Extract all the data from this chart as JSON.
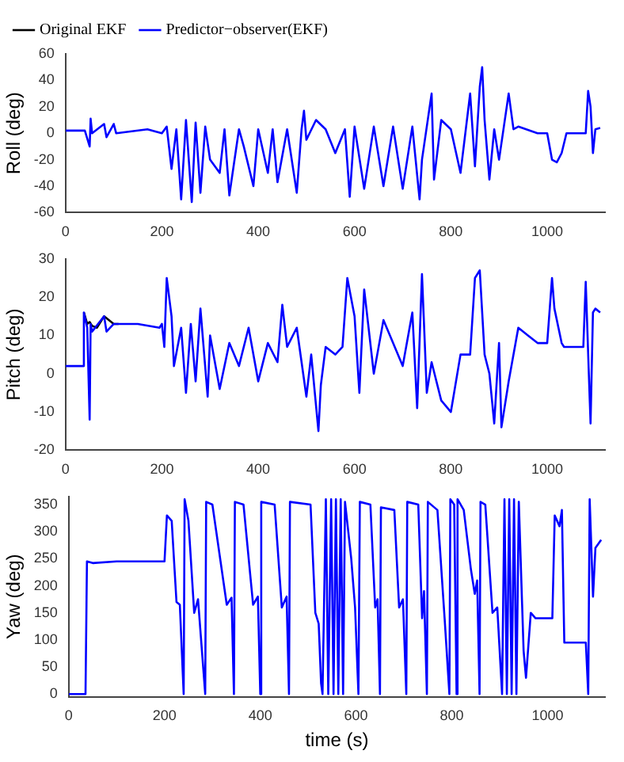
{
  "chart_data": [
    {
      "type": "line",
      "ylabel": "Roll (deg)",
      "legend": "top left",
      "xlim": [
        0,
        1120
      ],
      "xticks": [
        0,
        200,
        400,
        600,
        800,
        1000
      ],
      "ylim": [
        -60,
        60
      ],
      "yticks": [
        -60,
        -40,
        -20,
        0,
        20,
        40,
        60
      ],
      "x": [
        0,
        30,
        40,
        50,
        52,
        55,
        80,
        85,
        100,
        105,
        170,
        200,
        210,
        220,
        230,
        240,
        250,
        262,
        270,
        280,
        290,
        300,
        320,
        330,
        340,
        360,
        370,
        390,
        400,
        420,
        430,
        440,
        460,
        480,
        490,
        495,
        500,
        520,
        540,
        560,
        580,
        590,
        600,
        620,
        640,
        660,
        680,
        700,
        720,
        735,
        740,
        760,
        765,
        780,
        800,
        820,
        840,
        850,
        860,
        865,
        870,
        880,
        890,
        900,
        920,
        930,
        940,
        980,
        1000,
        1010,
        1020,
        1030,
        1040,
        1080,
        1085,
        1090,
        1095,
        1100,
        1110
      ],
      "series": [
        {
          "name": "Original EKF",
          "color": "#000000",
          "values": [
            null,
            null,
            null,
            null,
            null,
            null,
            null,
            null,
            null,
            null,
            null,
            null,
            null,
            null,
            null,
            null,
            null,
            null,
            null,
            null,
            null,
            null,
            null,
            null,
            null,
            null,
            null,
            null,
            null,
            null,
            null,
            null,
            null,
            null,
            null,
            null,
            null,
            null,
            null,
            null,
            null,
            null,
            null,
            null,
            null,
            null,
            null,
            null,
            null,
            null,
            null,
            null,
            null,
            null,
            null,
            null,
            null,
            null,
            null,
            null,
            null,
            null,
            null,
            null,
            null,
            null,
            null,
            null,
            null,
            null,
            null,
            null,
            null,
            null,
            null,
            null,
            null,
            null,
            null
          ]
        },
        {
          "name": "Predictor−observer(EKF)",
          "color": "#0000ff",
          "values": [
            2,
            2,
            2,
            -10,
            11,
            0,
            7,
            -3,
            7,
            0,
            3,
            0,
            5,
            -27,
            3,
            -50,
            10,
            -52,
            8,
            -45,
            5,
            -20,
            -30,
            3,
            -47,
            3,
            -10,
            -40,
            3,
            -30,
            3,
            -37,
            3,
            -45,
            3,
            17,
            -5,
            10,
            3,
            -15,
            3,
            -48,
            5,
            -42,
            5,
            -40,
            5,
            -42,
            5,
            -50,
            -20,
            30,
            -35,
            10,
            3,
            -30,
            30,
            -25,
            35,
            50,
            10,
            -35,
            3,
            -20,
            30,
            3,
            5,
            0,
            0,
            -20,
            -22,
            -15,
            0,
            0,
            32,
            20,
            -15,
            3,
            4
          ]
        }
      ]
    },
    {
      "type": "line",
      "ylabel": "Pitch (deg)",
      "xlim": [
        0,
        1120
      ],
      "xticks": [
        0,
        200,
        400,
        600,
        800,
        1000
      ],
      "ylim": [
        -20,
        30
      ],
      "yticks": [
        -20,
        -10,
        0,
        10,
        20,
        30
      ],
      "x": [
        0,
        35,
        38,
        45,
        50,
        52,
        55,
        80,
        85,
        100,
        150,
        195,
        200,
        205,
        210,
        220,
        225,
        240,
        250,
        260,
        270,
        280,
        295,
        300,
        320,
        340,
        360,
        380,
        400,
        420,
        440,
        450,
        460,
        480,
        500,
        510,
        525,
        530,
        540,
        560,
        575,
        585,
        600,
        610,
        620,
        640,
        660,
        700,
        720,
        730,
        740,
        750,
        760,
        780,
        800,
        820,
        840,
        850,
        860,
        870,
        880,
        890,
        900,
        905,
        920,
        940,
        960,
        980,
        1000,
        1010,
        1015,
        1030,
        1035,
        1060,
        1075,
        1080,
        1090,
        1095,
        1100,
        1110
      ],
      "series": [
        {
          "color": "#000000",
          "x": [
            38,
            45,
            50,
            55,
            65,
            80,
            100,
            110
          ],
          "values": [
            16,
            13,
            13.5,
            12.5,
            12,
            15,
            13,
            13
          ]
        },
        {
          "color": "#0000ff",
          "values": [
            2,
            2,
            16,
            12,
            -12,
            13,
            11,
            15,
            11,
            13,
            13,
            12,
            13,
            7,
            25,
            15,
            2,
            12,
            -5,
            13,
            -2,
            17,
            -6,
            10,
            -4,
            8,
            2,
            12,
            -2,
            8,
            3,
            18,
            7,
            12,
            -6,
            5,
            -15,
            -3,
            7,
            5,
            7,
            25,
            15,
            -5,
            22,
            0,
            14,
            2,
            16,
            -9,
            26,
            -5,
            3,
            -7,
            -10,
            5,
            5,
            25,
            27,
            5,
            0,
            -13,
            8,
            -14,
            -2,
            12,
            10,
            8,
            8,
            25,
            17,
            8,
            7,
            7,
            7,
            24,
            -13,
            16,
            17,
            16
          ]
        }
      ]
    },
    {
      "type": "line",
      "ylabel": "Yaw (deg)",
      "xlabel": "time (s)",
      "xlim": [
        0,
        1120
      ],
      "xticks": [
        0,
        200,
        400,
        600,
        800,
        1000
      ],
      "ylim": [
        -5,
        365
      ],
      "yticks": [
        0,
        50,
        100,
        150,
        200,
        250,
        300,
        350
      ],
      "x": [
        0,
        35,
        38,
        50,
        100,
        180,
        200,
        205,
        215,
        225,
        232,
        240,
        242,
        250,
        262,
        270,
        285,
        287,
        300,
        330,
        340,
        345,
        347,
        365,
        385,
        395,
        400,
        402,
        430,
        445,
        455,
        460,
        462,
        505,
        515,
        522,
        527,
        530,
        537,
        542,
        548,
        553,
        558,
        563,
        568,
        573,
        577,
        590,
        598,
        605,
        608,
        630,
        640,
        645,
        650,
        652,
        680,
        690,
        698,
        705,
        707,
        730,
        738,
        742,
        748,
        750,
        770,
        785,
        795,
        797,
        805,
        810,
        812,
        825,
        840,
        848,
        853,
        858,
        860,
        870,
        885,
        895,
        905,
        910,
        915,
        920,
        925,
        930,
        935,
        940,
        950,
        955,
        965,
        975,
        1010,
        1015,
        1025,
        1030,
        1035,
        1080,
        1085,
        1088,
        1095,
        1100,
        1112
      ],
      "series": [
        {
          "color": "#0000ff",
          "values": [
            0,
            0,
            245,
            242,
            245,
            245,
            245,
            330,
            320,
            170,
            165,
            0,
            360,
            320,
            150,
            175,
            0,
            355,
            350,
            165,
            178,
            0,
            355,
            350,
            165,
            180,
            0,
            355,
            350,
            160,
            180,
            0,
            355,
            350,
            150,
            130,
            20,
            0,
            360,
            0,
            360,
            0,
            360,
            0,
            360,
            0,
            355,
            250,
            160,
            0,
            355,
            350,
            160,
            175,
            0,
            345,
            340,
            160,
            175,
            0,
            355,
            350,
            140,
            190,
            0,
            355,
            340,
            140,
            0,
            360,
            350,
            0,
            360,
            340,
            230,
            185,
            210,
            0,
            355,
            350,
            150,
            160,
            0,
            360,
            0,
            360,
            0,
            360,
            0,
            355,
            80,
            30,
            150,
            140,
            140,
            330,
            310,
            340,
            95,
            95,
            0,
            360,
            180,
            270,
            285
          ]
        }
      ]
    }
  ]
}
